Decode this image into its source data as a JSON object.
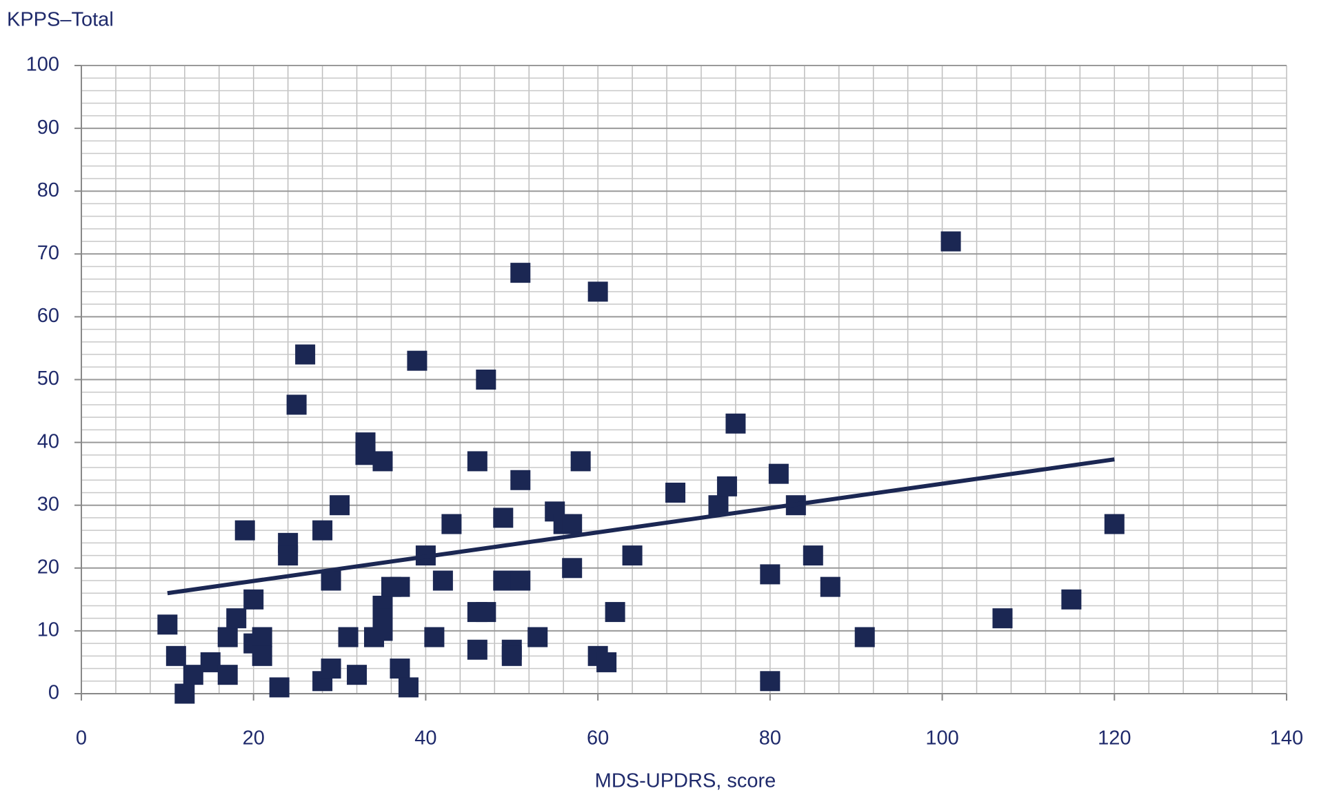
{
  "chart_data": {
    "type": "scatter",
    "title": "KPPS–Total",
    "x_label": "MDS-UPDRS, score",
    "x": [
      10,
      11,
      12,
      13,
      15,
      17,
      17,
      18,
      19,
      20,
      20,
      21,
      21,
      23,
      24,
      24,
      25,
      26,
      28,
      28,
      29,
      29,
      30,
      31,
      32,
      33,
      33,
      34,
      35,
      35,
      35,
      35,
      36,
      37,
      37,
      38,
      39,
      40,
      41,
      42,
      43,
      46,
      46,
      46,
      47,
      47,
      49,
      49,
      50,
      50,
      51,
      51,
      51,
      53,
      55,
      56,
      57,
      57,
      58,
      60,
      60,
      61,
      62,
      64,
      69,
      74,
      75,
      76,
      80,
      80,
      81,
      83,
      85,
      87,
      91,
      101,
      107,
      115,
      120
    ],
    "values": [
      11,
      6,
      0,
      3,
      5,
      9,
      3,
      12,
      26,
      15,
      8,
      9,
      6,
      1,
      24,
      22,
      46,
      54,
      26,
      2,
      18,
      4,
      30,
      9,
      3,
      40,
      38,
      9,
      37,
      14,
      12,
      10,
      17,
      17,
      4,
      1,
      53,
      22,
      9,
      18,
      27,
      37,
      13,
      7,
      50,
      13,
      28,
      18,
      7,
      6,
      67,
      34,
      18,
      9,
      29,
      27,
      27,
      20,
      37,
      64,
      6,
      5,
      13,
      22,
      32,
      30,
      33,
      43,
      19,
      2,
      35,
      30,
      22,
      17,
      9,
      72,
      12,
      15,
      27
    ],
    "color": "#1b2753",
    "trendline": {
      "x": [
        10,
        120
      ],
      "values": [
        16,
        37.3
      ],
      "color": "#1b2753"
    },
    "xlim": [
      0,
      140
    ],
    "xticks": [
      0,
      20,
      40,
      60,
      80,
      100,
      120,
      140
    ],
    "ylim": [
      0,
      100
    ],
    "yticks": [
      0,
      10,
      20,
      30,
      40,
      50,
      60,
      70,
      80,
      90,
      100
    ],
    "grid": true,
    "minor_grid_step": {
      "x": 4,
      "y": 2
    }
  }
}
